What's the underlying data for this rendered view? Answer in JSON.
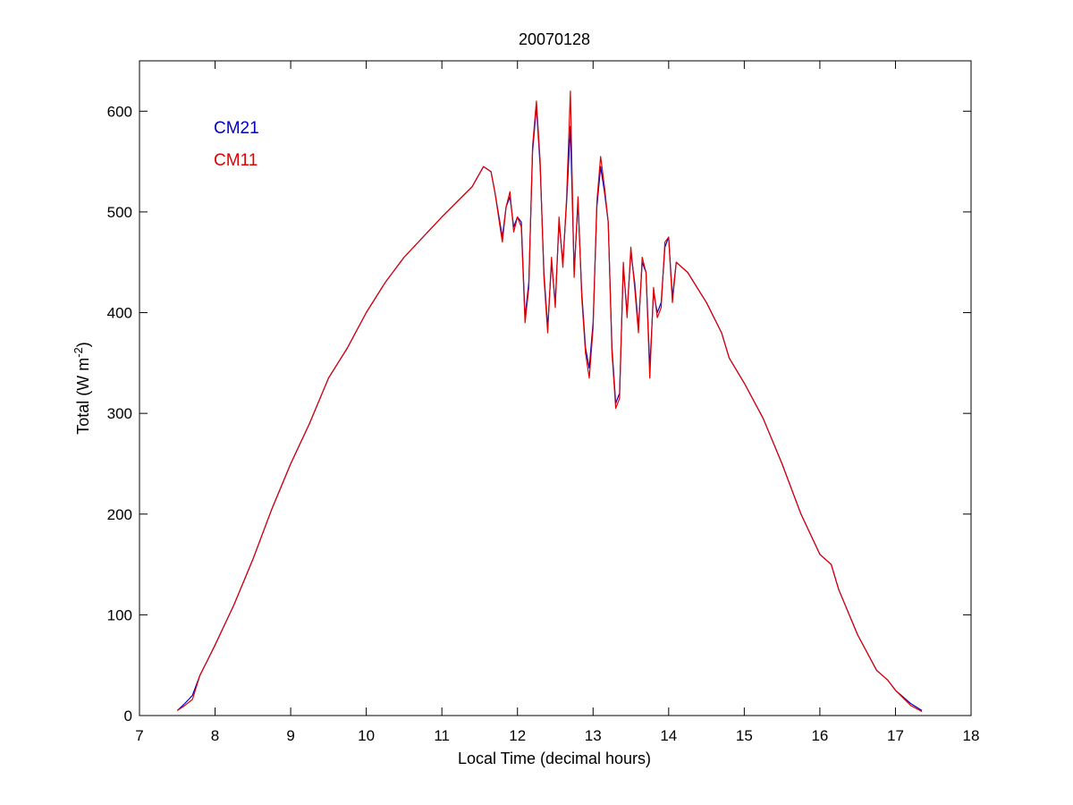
{
  "chart_data": {
    "type": "line",
    "title": "20070128",
    "xlabel": "Local Time (decimal hours)",
    "ylabel_parts": {
      "main": "Total (W m",
      "sup": "-2",
      "close": ")"
    },
    "xlim": [
      7,
      18
    ],
    "ylim": [
      0,
      650
    ],
    "xticks": [
      7,
      8,
      9,
      10,
      11,
      12,
      13,
      14,
      15,
      16,
      17,
      18
    ],
    "yticks": [
      0,
      100,
      200,
      300,
      400,
      500,
      600
    ],
    "grid": false,
    "legend_placement": "top-left",
    "series": [
      {
        "name": "CM21",
        "color": "#0000c0",
        "x": [
          7.5,
          7.6,
          7.7,
          7.8,
          7.9,
          8.0,
          8.25,
          8.5,
          8.75,
          9.0,
          9.25,
          9.5,
          9.75,
          10.0,
          10.25,
          10.5,
          10.75,
          11.0,
          11.2,
          11.4,
          11.55,
          11.65,
          11.7,
          11.8,
          11.85,
          11.9,
          11.95,
          12.0,
          12.05,
          12.1,
          12.15,
          12.2,
          12.25,
          12.3,
          12.35,
          12.4,
          12.45,
          12.5,
          12.55,
          12.6,
          12.65,
          12.7,
          12.75,
          12.8,
          12.85,
          12.9,
          12.95,
          13.0,
          13.05,
          13.1,
          13.15,
          13.2,
          13.25,
          13.3,
          13.35,
          13.4,
          13.45,
          13.5,
          13.55,
          13.6,
          13.65,
          13.7,
          13.75,
          13.8,
          13.85,
          13.9,
          13.95,
          14.0,
          14.05,
          14.1,
          14.25,
          14.5,
          14.7,
          14.8,
          15.0,
          15.25,
          15.5,
          15.75,
          16.0,
          16.15,
          16.25,
          16.5,
          16.75,
          16.9,
          17.0,
          17.2,
          17.35
        ],
        "y": [
          5,
          12,
          20,
          40,
          55,
          70,
          110,
          155,
          205,
          250,
          290,
          335,
          365,
          400,
          430,
          455,
          475,
          495,
          510,
          525,
          545,
          540,
          520,
          475,
          505,
          515,
          485,
          495,
          490,
          395,
          430,
          560,
          605,
          545,
          440,
          385,
          450,
          410,
          490,
          450,
          510,
          585,
          440,
          510,
          420,
          365,
          345,
          390,
          505,
          545,
          520,
          490,
          365,
          310,
          320,
          445,
          400,
          460,
          430,
          385,
          450,
          440,
          345,
          420,
          400,
          410,
          465,
          475,
          415,
          450,
          440,
          410,
          380,
          355,
          330,
          295,
          250,
          200,
          160,
          150,
          125,
          80,
          45,
          35,
          25,
          12,
          5
        ]
      },
      {
        "name": "CM11",
        "color": "#e00000",
        "x": [
          7.5,
          7.6,
          7.7,
          7.8,
          7.9,
          8.0,
          8.25,
          8.5,
          8.75,
          9.0,
          9.25,
          9.5,
          9.75,
          10.0,
          10.25,
          10.5,
          10.75,
          11.0,
          11.2,
          11.4,
          11.55,
          11.65,
          11.7,
          11.8,
          11.85,
          11.9,
          11.95,
          12.0,
          12.05,
          12.1,
          12.15,
          12.2,
          12.25,
          12.3,
          12.35,
          12.4,
          12.45,
          12.5,
          12.55,
          12.6,
          12.65,
          12.7,
          12.75,
          12.8,
          12.85,
          12.9,
          12.95,
          13.0,
          13.05,
          13.1,
          13.15,
          13.2,
          13.25,
          13.3,
          13.35,
          13.4,
          13.45,
          13.5,
          13.55,
          13.6,
          13.65,
          13.7,
          13.75,
          13.8,
          13.85,
          13.9,
          13.95,
          14.0,
          14.05,
          14.1,
          14.25,
          14.5,
          14.7,
          14.8,
          15.0,
          15.25,
          15.5,
          15.75,
          16.0,
          16.15,
          16.25,
          16.5,
          16.75,
          16.9,
          17.0,
          17.2,
          17.35
        ],
        "y": [
          5,
          10,
          16,
          40,
          55,
          70,
          110,
          155,
          205,
          250,
          290,
          335,
          365,
          400,
          430,
          455,
          475,
          495,
          510,
          525,
          545,
          540,
          520,
          470,
          505,
          520,
          480,
          495,
          485,
          390,
          425,
          565,
          610,
          550,
          435,
          380,
          455,
          405,
          495,
          445,
          515,
          620,
          435,
          515,
          415,
          360,
          335,
          385,
          510,
          555,
          525,
          490,
          360,
          305,
          315,
          450,
          395,
          465,
          425,
          380,
          455,
          440,
          335,
          425,
          395,
          405,
          470,
          475,
          410,
          450,
          440,
          410,
          380,
          355,
          330,
          295,
          250,
          200,
          160,
          150,
          125,
          80,
          45,
          35,
          25,
          10,
          4
        ]
      }
    ]
  }
}
